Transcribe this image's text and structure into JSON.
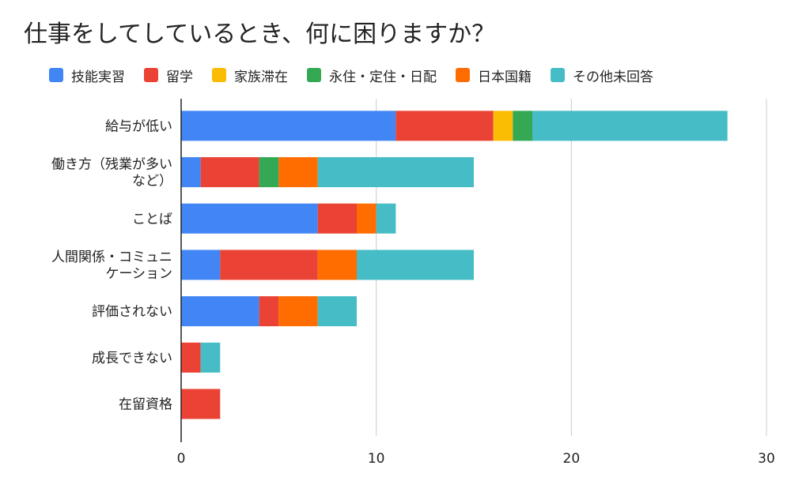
{
  "chart_data": {
    "type": "bar",
    "orientation": "horizontal",
    "stacked": true,
    "title": "仕事をしてしているとき、何に困りますか？",
    "categories": [
      [
        "給与が低い"
      ],
      [
        "働き方（残業が多い",
        "など）"
      ],
      [
        "ことば"
      ],
      [
        "人間関係・コミュニ",
        "ケーション"
      ],
      [
        "評価されない"
      ],
      [
        "成長できない"
      ],
      [
        "在留資格"
      ]
    ],
    "series": [
      {
        "name": "技能実習",
        "color": "#4285F4",
        "values": [
          11,
          1,
          7,
          2,
          4,
          0,
          0
        ]
      },
      {
        "name": "留学",
        "color": "#EA4335",
        "values": [
          5,
          3,
          2,
          5,
          1,
          1,
          2
        ]
      },
      {
        "name": "家族滞在",
        "color": "#FBBC04",
        "values": [
          1,
          0,
          0,
          0,
          0,
          0,
          0
        ]
      },
      {
        "name": "永住・定住・日配",
        "color": "#34A853",
        "values": [
          1,
          1,
          0,
          0,
          0,
          0,
          0
        ]
      },
      {
        "name": "日本国籍",
        "color": "#FF6D01",
        "values": [
          0,
          2,
          1,
          2,
          2,
          0,
          0
        ]
      },
      {
        "name": "その他未回答",
        "color": "#46BDC6",
        "values": [
          10,
          8,
          1,
          6,
          2,
          1,
          0
        ]
      }
    ],
    "xlim": [
      0,
      30
    ],
    "xticks": [
      0,
      10,
      20,
      30
    ],
    "grid": true,
    "legend_position": "top",
    "xlabel": "",
    "ylabel": ""
  }
}
